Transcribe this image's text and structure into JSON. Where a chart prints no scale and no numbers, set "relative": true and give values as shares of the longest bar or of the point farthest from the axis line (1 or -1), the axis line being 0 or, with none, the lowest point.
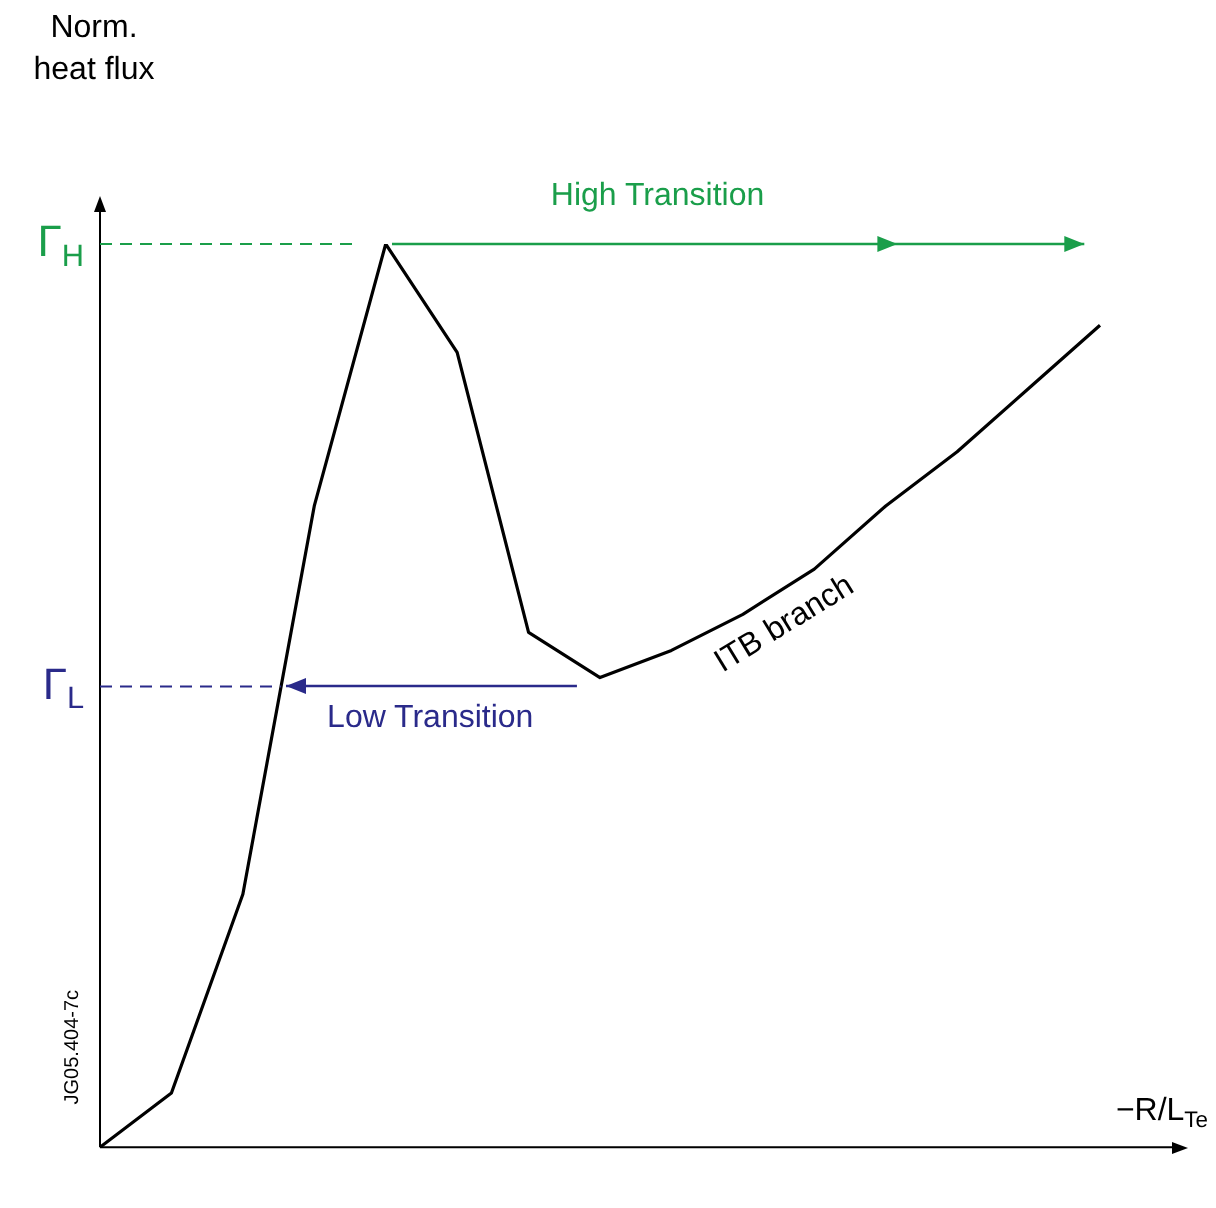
{
  "chart_data": {
    "type": "line",
    "relative": true,
    "xlabel": "−R/L$_{Te}$",
    "ylabel": "Norm. heat flux",
    "categories": [
      null,
      null,
      null,
      null,
      null,
      null,
      null,
      null,
      null,
      null,
      null,
      null,
      null,
      null,
      null
    ],
    "series": [
      {
        "color": "#000000",
        "values": [
          0,
          0.06,
          0.28,
          0.71,
          1.0,
          0.88,
          0.57,
          0.52,
          0.55,
          0.59,
          0.64,
          0.71,
          0.77,
          0.84,
          0.91
        ]
      }
    ],
    "ref_lines": [
      {
        "axis": "y",
        "value": 1.0,
        "label": "Γ$_{H}$",
        "color": "#1a9e4a",
        "line_style": "dashed"
      },
      {
        "axis": "y",
        "value": 0.51,
        "label": "Γ$_{L}$",
        "color": "#2a2a8a",
        "line_style": "dashed"
      }
    ],
    "annotations": [
      "High Transition",
      "Low Transition",
      "ITB branch",
      "JG05.404-7c"
    ],
    "grid": false,
    "legend": false,
    "marker": "none",
    "line_style": "solid"
  }
}
